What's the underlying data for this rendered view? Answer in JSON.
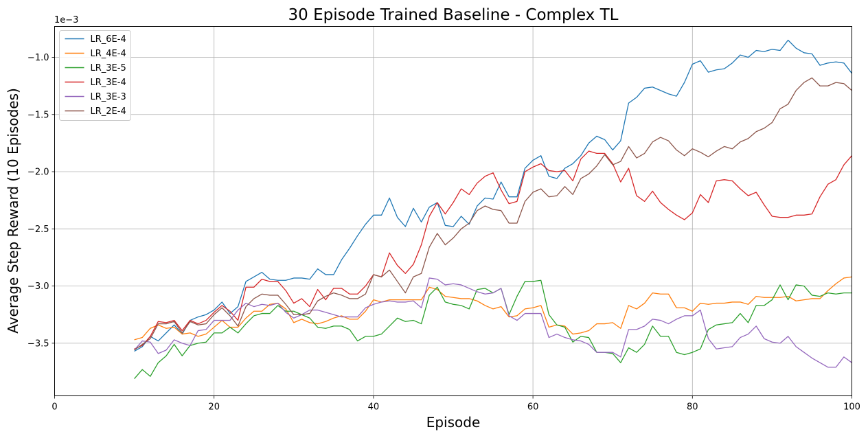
{
  "chart_data": {
    "type": "line",
    "title": "30 Episode Trained Baseline - Complex TL",
    "xlabel": "Episode",
    "ylabel": "Average Step Reward (10 Episodes)",
    "y_scale_label": "1e−3",
    "xlim": [
      0,
      100
    ],
    "ylim": [
      -3.96,
      -0.73
    ],
    "xticks": [
      0,
      20,
      40,
      60,
      80,
      100
    ],
    "yticks": [
      -3.5,
      -3.0,
      -2.5,
      -2.0,
      -1.5,
      -1.0
    ],
    "grid": true,
    "legend_position": "top-left",
    "x": [
      10,
      11,
      12,
      13,
      14,
      15,
      16,
      17,
      18,
      19,
      20,
      21,
      22,
      23,
      24,
      25,
      26,
      27,
      28,
      29,
      30,
      31,
      32,
      33,
      34,
      35,
      36,
      37,
      38,
      39,
      40,
      41,
      42,
      43,
      44,
      45,
      46,
      47,
      48,
      49,
      50,
      51,
      52,
      53,
      54,
      55,
      56,
      57,
      58,
      59,
      60,
      61,
      62,
      63,
      64,
      65,
      66,
      67,
      68,
      69,
      70,
      71,
      72,
      73,
      74,
      75,
      76,
      77,
      78,
      79,
      80,
      81,
      82,
      83,
      84,
      85,
      86,
      87,
      88,
      89,
      90,
      91,
      92,
      93,
      94,
      95,
      96,
      97,
      98,
      99,
      100
    ],
    "series": [
      {
        "name": "LR_6E-4",
        "color": "#1f77b4",
        "values": [
          -3.57,
          -3.53,
          -3.44,
          -3.48,
          -3.41,
          -3.34,
          -3.42,
          -3.3,
          -3.27,
          -3.25,
          -3.21,
          -3.14,
          -3.24,
          -3.18,
          -2.96,
          -2.92,
          -2.88,
          -2.94,
          -2.95,
          -2.95,
          -2.93,
          -2.93,
          -2.94,
          -2.85,
          -2.9,
          -2.9,
          -2.77,
          -2.67,
          -2.56,
          -2.46,
          -2.38,
          -2.38,
          -2.23,
          -2.4,
          -2.48,
          -2.32,
          -2.44,
          -2.31,
          -2.27,
          -2.47,
          -2.48,
          -2.39,
          -2.46,
          -2.3,
          -2.23,
          -2.24,
          -2.09,
          -2.22,
          -2.22,
          -1.97,
          -1.9,
          -1.86,
          -2.04,
          -2.06,
          -1.97,
          -1.93,
          -1.86,
          -1.75,
          -1.69,
          -1.72,
          -1.81,
          -1.73,
          -1.4,
          -1.35,
          -1.27,
          -1.26,
          -1.29,
          -1.32,
          -1.34,
          -1.22,
          -1.06,
          -1.03,
          -1.13,
          -1.11,
          -1.1,
          -1.05,
          -0.98,
          -1.0,
          -0.94,
          -0.95,
          -0.93,
          -0.94,
          -0.85,
          -0.92,
          -0.96,
          -0.97,
          -1.07,
          -1.05,
          -1.04,
          -1.05,
          -1.14
        ]
      },
      {
        "name": "LR_4E-4",
        "color": "#ff7f0e",
        "values": [
          -3.47,
          -3.45,
          -3.37,
          -3.34,
          -3.37,
          -3.36,
          -3.42,
          -3.41,
          -3.44,
          -3.42,
          -3.36,
          -3.3,
          -3.36,
          -3.36,
          -3.28,
          -3.22,
          -3.22,
          -3.16,
          -3.15,
          -3.2,
          -3.32,
          -3.29,
          -3.32,
          -3.33,
          -3.31,
          -3.28,
          -3.26,
          -3.29,
          -3.29,
          -3.22,
          -3.12,
          -3.14,
          -3.12,
          -3.12,
          -3.12,
          -3.12,
          -3.12,
          -3.01,
          -3.03,
          -3.09,
          -3.1,
          -3.11,
          -3.11,
          -3.13,
          -3.17,
          -3.2,
          -3.18,
          -3.27,
          -3.26,
          -3.2,
          -3.19,
          -3.17,
          -3.36,
          -3.34,
          -3.35,
          -3.42,
          -3.41,
          -3.39,
          -3.33,
          -3.33,
          -3.32,
          -3.37,
          -3.17,
          -3.2,
          -3.15,
          -3.06,
          -3.07,
          -3.07,
          -3.19,
          -3.19,
          -3.22,
          -3.15,
          -3.16,
          -3.15,
          -3.15,
          -3.14,
          -3.14,
          -3.16,
          -3.09,
          -3.1,
          -3.1,
          -3.1,
          -3.09,
          -3.13,
          -3.12,
          -3.11,
          -3.11,
          -3.04,
          -2.98,
          -2.93,
          -2.92
        ]
      },
      {
        "name": "LR_3E-5",
        "color": "#2ca02c",
        "values": [
          -3.81,
          -3.73,
          -3.79,
          -3.67,
          -3.61,
          -3.51,
          -3.61,
          -3.52,
          -3.5,
          -3.49,
          -3.41,
          -3.41,
          -3.36,
          -3.41,
          -3.33,
          -3.26,
          -3.24,
          -3.24,
          -3.17,
          -3.22,
          -3.22,
          -3.25,
          -3.28,
          -3.36,
          -3.37,
          -3.35,
          -3.35,
          -3.38,
          -3.48,
          -3.44,
          -3.44,
          -3.42,
          -3.35,
          -3.28,
          -3.31,
          -3.3,
          -3.33,
          -3.08,
          -3.01,
          -3.14,
          -3.16,
          -3.17,
          -3.2,
          -3.03,
          -3.02,
          -3.06,
          -3.02,
          -3.25,
          -3.09,
          -2.96,
          -2.96,
          -2.95,
          -3.25,
          -3.34,
          -3.36,
          -3.49,
          -3.44,
          -3.45,
          -3.58,
          -3.58,
          -3.59,
          -3.67,
          -3.54,
          -3.58,
          -3.51,
          -3.35,
          -3.44,
          -3.44,
          -3.58,
          -3.6,
          -3.58,
          -3.55,
          -3.38,
          -3.34,
          -3.33,
          -3.32,
          -3.24,
          -3.32,
          -3.17,
          -3.17,
          -3.12,
          -2.99,
          -3.12,
          -2.99,
          -3.0,
          -3.08,
          -3.09,
          -3.06,
          -3.07,
          -3.06,
          -3.06
        ]
      },
      {
        "name": "LR_3E-4",
        "color": "#d62728",
        "values": [
          -3.55,
          -3.52,
          -3.44,
          -3.31,
          -3.32,
          -3.3,
          -3.39,
          -3.3,
          -3.33,
          -3.3,
          -3.23,
          -3.17,
          -3.22,
          -3.3,
          -3.01,
          -3.01,
          -2.94,
          -2.96,
          -2.96,
          -3.04,
          -3.15,
          -3.11,
          -3.18,
          -3.03,
          -3.12,
          -3.02,
          -3.02,
          -3.07,
          -3.07,
          -3.0,
          -2.9,
          -2.92,
          -2.71,
          -2.82,
          -2.89,
          -2.81,
          -2.64,
          -2.39,
          -2.27,
          -2.37,
          -2.27,
          -2.15,
          -2.2,
          -2.1,
          -2.04,
          -2.01,
          -2.16,
          -2.28,
          -2.26,
          -2.0,
          -1.96,
          -1.93,
          -1.99,
          -2.0,
          -1.99,
          -2.08,
          -1.89,
          -1.82,
          -1.84,
          -1.84,
          -1.93,
          -2.09,
          -1.97,
          -2.21,
          -2.26,
          -2.17,
          -2.27,
          -2.33,
          -2.38,
          -2.42,
          -2.36,
          -2.2,
          -2.27,
          -2.08,
          -2.07,
          -2.08,
          -2.15,
          -2.21,
          -2.18,
          -2.29,
          -2.39,
          -2.4,
          -2.4,
          -2.38,
          -2.38,
          -2.37,
          -2.22,
          -2.11,
          -2.07,
          -1.94,
          -1.86
        ]
      },
      {
        "name": "LR_3E-3",
        "color": "#9467bd",
        "values": [
          -3.56,
          -3.48,
          -3.49,
          -3.59,
          -3.56,
          -3.47,
          -3.5,
          -3.52,
          -3.39,
          -3.38,
          -3.3,
          -3.3,
          -3.3,
          -3.21,
          -3.15,
          -3.18,
          -3.16,
          -3.17,
          -3.15,
          -3.23,
          -3.28,
          -3.25,
          -3.21,
          -3.21,
          -3.23,
          -3.25,
          -3.27,
          -3.27,
          -3.27,
          -3.19,
          -3.16,
          -3.14,
          -3.13,
          -3.14,
          -3.14,
          -3.13,
          -3.19,
          -2.93,
          -2.94,
          -2.99,
          -2.98,
          -2.99,
          -3.02,
          -3.05,
          -3.07,
          -3.06,
          -3.02,
          -3.26,
          -3.3,
          -3.24,
          -3.24,
          -3.24,
          -3.45,
          -3.42,
          -3.45,
          -3.47,
          -3.48,
          -3.51,
          -3.58,
          -3.58,
          -3.58,
          -3.62,
          -3.38,
          -3.38,
          -3.35,
          -3.29,
          -3.3,
          -3.33,
          -3.29,
          -3.26,
          -3.26,
          -3.21,
          -3.46,
          -3.55,
          -3.54,
          -3.53,
          -3.45,
          -3.42,
          -3.35,
          -3.46,
          -3.49,
          -3.5,
          -3.44,
          -3.53,
          -3.58,
          -3.63,
          -3.67,
          -3.71,
          -3.71,
          -3.62,
          -3.67
        ]
      },
      {
        "name": "LR_2E-4",
        "color": "#8c564b",
        "values": [
          -3.56,
          -3.51,
          -3.46,
          -3.33,
          -3.33,
          -3.31,
          -3.41,
          -3.31,
          -3.34,
          -3.33,
          -3.25,
          -3.19,
          -3.26,
          -3.35,
          -3.18,
          -3.11,
          -3.07,
          -3.08,
          -3.08,
          -3.16,
          -3.25,
          -3.25,
          -3.24,
          -3.13,
          -3.09,
          -3.06,
          -3.08,
          -3.11,
          -3.11,
          -3.07,
          -2.9,
          -2.92,
          -2.86,
          -2.96,
          -3.06,
          -2.92,
          -2.89,
          -2.66,
          -2.54,
          -2.64,
          -2.58,
          -2.5,
          -2.45,
          -2.34,
          -2.3,
          -2.33,
          -2.34,
          -2.45,
          -2.45,
          -2.26,
          -2.18,
          -2.15,
          -2.22,
          -2.21,
          -2.13,
          -2.2,
          -2.06,
          -2.02,
          -1.95,
          -1.85,
          -1.94,
          -1.91,
          -1.78,
          -1.88,
          -1.84,
          -1.74,
          -1.7,
          -1.73,
          -1.81,
          -1.86,
          -1.8,
          -1.83,
          -1.87,
          -1.82,
          -1.78,
          -1.8,
          -1.74,
          -1.71,
          -1.65,
          -1.62,
          -1.57,
          -1.45,
          -1.41,
          -1.29,
          -1.22,
          -1.18,
          -1.25,
          -1.25,
          -1.22,
          -1.23,
          -1.29
        ]
      }
    ]
  }
}
